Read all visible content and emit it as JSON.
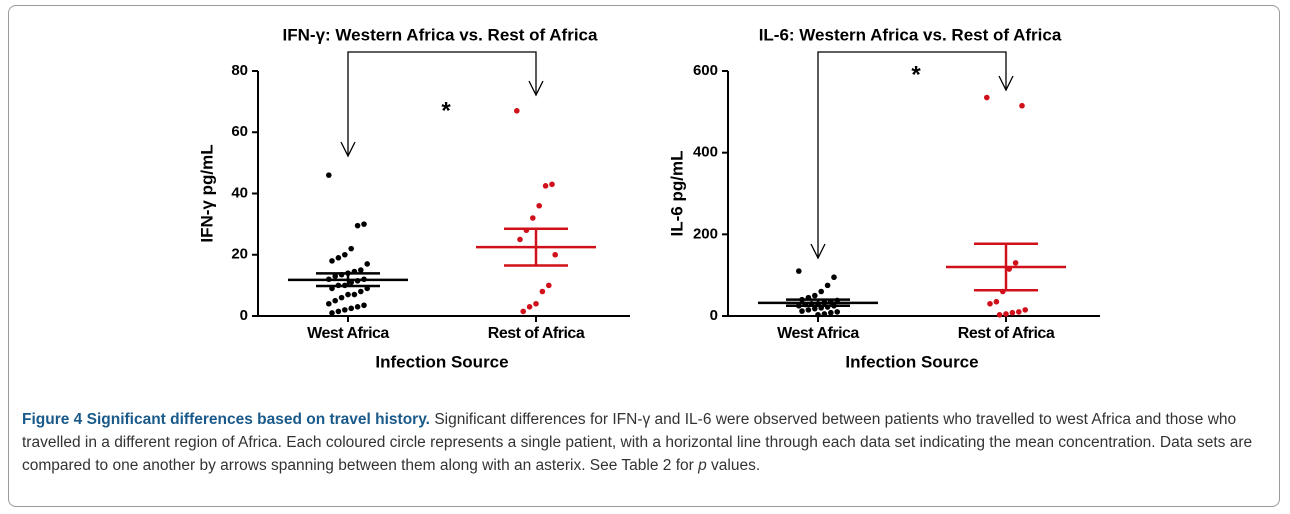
{
  "chart_data": [
    {
      "type": "strip",
      "title": "IFN-γ: Western Africa vs. Rest of Africa",
      "y_label": "IFN-γ pg/mL",
      "x_label": "Infection Source",
      "categories": [
        "West Africa",
        "Rest of Africa"
      ],
      "ylim": [
        0,
        80
      ],
      "yticks": [
        0,
        20,
        40,
        60,
        80
      ],
      "annotation": "*",
      "groups": [
        {
          "color": "#000000",
          "values": [
            46,
            30,
            29.5,
            22,
            20,
            19,
            18,
            17,
            15,
            14.5,
            14,
            13.5,
            13,
            12,
            12,
            11.5,
            11,
            10,
            10,
            9,
            9,
            8,
            7,
            7,
            6,
            5,
            4,
            3.5,
            3,
            2.5,
            2,
            1.5,
            1
          ],
          "mean": 11.8,
          "error_lower": 9.8,
          "error_upper": 13.9
        },
        {
          "color": "#d0101a",
          "values": [
            67,
            43,
            42.5,
            36,
            32,
            28,
            25,
            20,
            10,
            8,
            4,
            3,
            1.5
          ],
          "mean": 22.5,
          "error_lower": 16.5,
          "error_upper": 28.5
        }
      ]
    },
    {
      "type": "strip",
      "title": "IL-6: Western Africa vs. Rest of Africa",
      "y_label": "IL-6 pg/mL",
      "x_label": "Infection Source",
      "categories": [
        "West Africa",
        "Rest of Africa"
      ],
      "ylim": [
        0,
        600
      ],
      "yticks": [
        0,
        200,
        400,
        600
      ],
      "annotation": "*",
      "groups": [
        {
          "color": "#000000",
          "values": [
            110,
            95,
            75,
            60,
            50,
            45,
            40,
            38,
            35,
            33,
            30,
            30,
            28,
            25,
            25,
            22,
            20,
            18,
            15,
            12,
            10,
            8,
            5,
            3
          ],
          "mean": 32,
          "error_lower": 25,
          "error_upper": 40
        },
        {
          "color": "#d0101a",
          "values": [
            535,
            515,
            130,
            115,
            60,
            35,
            30,
            15,
            10,
            8,
            5,
            3
          ],
          "mean": 120,
          "error_lower": 63,
          "error_upper": 177
        }
      ]
    }
  ],
  "caption": {
    "label": "Figure 4",
    "title": "Significant differences based on travel history.",
    "text": "Significant differences for IFN-γ and IL-6 were observed between patients who travelled to west Africa and those who travelled in a different region of Africa. Each coloured circle represents a single patient, with a horizontal line through each data set indicating the mean concentration. Data sets are compared to one another by arrows spanning between them along with an asterix. See Table 2 for",
    "italic": "p",
    "text_end": "values."
  }
}
